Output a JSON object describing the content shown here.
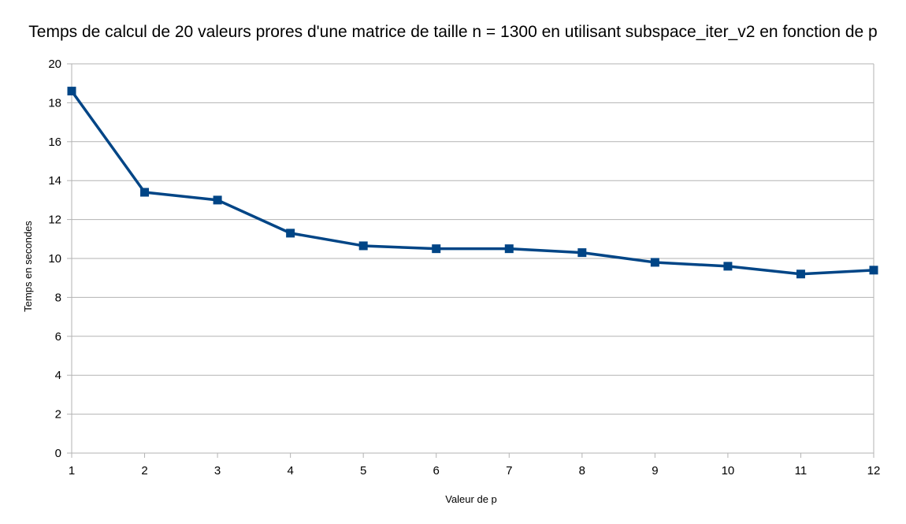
{
  "chart_data": {
    "type": "line",
    "title": "Temps de calcul de 20 valeurs prores d'une matrice de taille n = 1300 en utilisant subspace_iter_v2 en fonction de p",
    "xlabel": "Valeur de p",
    "ylabel": "Temps en secondes",
    "x": [
      1,
      2,
      3,
      4,
      5,
      6,
      7,
      8,
      9,
      10,
      11,
      12
    ],
    "series": [
      {
        "values": [
          18.6,
          13.4,
          13.0,
          11.3,
          10.65,
          10.5,
          10.5,
          10.3,
          9.8,
          9.6,
          9.2,
          9.4
        ]
      }
    ],
    "xlim": [
      1,
      12
    ],
    "ylim": [
      0,
      20
    ],
    "yticks": [
      0,
      2,
      4,
      6,
      8,
      10,
      12,
      14,
      16,
      18,
      20
    ],
    "grid": true,
    "legend": "none",
    "marker": "square",
    "colors": {
      "series": "#004586",
      "grid": "#b3b3b3"
    }
  }
}
